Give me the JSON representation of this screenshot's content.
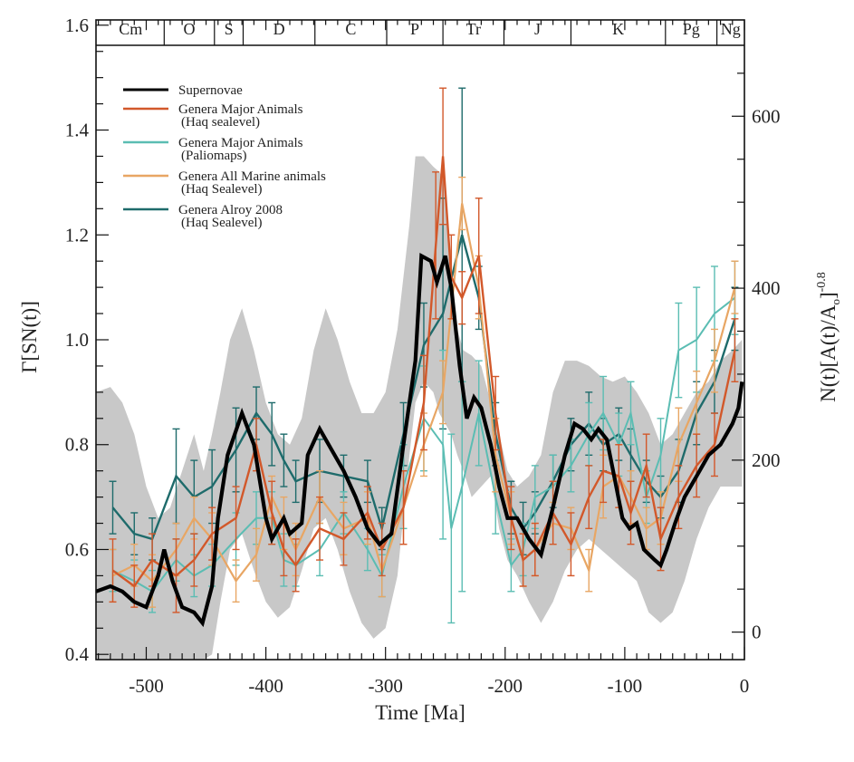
{
  "chart_data": {
    "type": "line",
    "title": "",
    "xlabel": "Time [Ma]",
    "ylabel": "Γ[SN(t)]",
    "ylabel_right": "N(t)[A(t)/A₀]^-0.8",
    "ylabel_right_base": "N(t)[A(t)/A",
    "ylabel_right_sub": "o",
    "ylabel_right_close": "]",
    "ylabel_right_exp": "-0.8",
    "xlim": [
      -542,
      0
    ],
    "ylim": [
      0.39,
      1.61
    ],
    "ylim_right": [
      -32,
      712
    ],
    "x_ticks": [
      -500,
      -400,
      -300,
      -200,
      -100,
      0
    ],
    "x_tick_labels": [
      "-500",
      "-400",
      "-300",
      "-200",
      "-100",
      "0"
    ],
    "y_ticks": [
      0.4,
      0.6,
      0.8,
      1.0,
      1.2,
      1.4,
      1.6
    ],
    "y_tick_labels": [
      "0.4",
      "0.6",
      "0.8",
      "1.0",
      "1.2",
      "1.4",
      "1.6"
    ],
    "y_right_ticks": [
      0,
      200,
      400,
      600
    ],
    "y_right_tick_labels": [
      "0",
      "200",
      "400",
      "600"
    ],
    "legend_position": "top-left",
    "periods": [
      {
        "label": "Cm",
        "start": -541,
        "end": -485
      },
      {
        "label": "O",
        "start": -485,
        "end": -443
      },
      {
        "label": "S",
        "start": -443,
        "end": -419
      },
      {
        "label": "D",
        "start": -419,
        "end": -359
      },
      {
        "label": "C",
        "start": -359,
        "end": -299
      },
      {
        "label": "P",
        "start": -299,
        "end": -252
      },
      {
        "label": "Tr",
        "start": -252,
        "end": -201
      },
      {
        "label": "J",
        "start": -201,
        "end": -145
      },
      {
        "label": "K",
        "start": -145,
        "end": -66
      },
      {
        "label": "Pg",
        "start": -66,
        "end": -23
      },
      {
        "label": "Ng",
        "start": -23,
        "end": 0
      }
    ],
    "band": {
      "name": "Supernovae uncertainty",
      "color": "#c8c8c8",
      "x": [
        -542,
        -530,
        -520,
        -510,
        -500,
        -490,
        -480,
        -470,
        -460,
        -452,
        -445,
        -438,
        -430,
        -420,
        -410,
        -400,
        -390,
        -380,
        -370,
        -360,
        -350,
        -340,
        -330,
        -320,
        -310,
        -300,
        -290,
        -280,
        -275,
        -268,
        -260,
        -255,
        -250,
        -245,
        -240,
        -235,
        -228,
        -220,
        -212,
        -205,
        -198,
        -190,
        -180,
        -170,
        -160,
        -150,
        -140,
        -130,
        -120,
        -110,
        -100,
        -90,
        -80,
        -70,
        -60,
        -50,
        -40,
        -30,
        -20,
        -10,
        -2
      ],
      "upper": [
        0.9,
        0.91,
        0.88,
        0.82,
        0.72,
        0.66,
        0.68,
        0.75,
        0.82,
        0.75,
        0.82,
        0.9,
        1.0,
        1.06,
        0.98,
        0.88,
        0.82,
        0.8,
        0.85,
        0.98,
        1.06,
        1.0,
        0.92,
        0.86,
        0.86,
        0.9,
        1.02,
        1.22,
        1.35,
        1.35,
        1.33,
        1.32,
        1.3,
        1.1,
        1.02,
        0.98,
        0.97,
        0.95,
        0.88,
        0.82,
        0.75,
        0.72,
        0.74,
        0.78,
        0.9,
        0.96,
        0.96,
        0.95,
        0.93,
        0.92,
        0.93,
        0.9,
        0.86,
        0.8,
        0.82,
        0.86,
        0.9,
        0.92,
        0.96,
        0.98,
        1.0
      ],
      "lower": [
        0.39,
        0.39,
        0.39,
        0.39,
        0.39,
        0.39,
        0.39,
        0.39,
        0.39,
        0.39,
        0.4,
        0.5,
        0.6,
        0.63,
        0.56,
        0.5,
        0.47,
        0.49,
        0.56,
        0.64,
        0.66,
        0.6,
        0.52,
        0.46,
        0.43,
        0.45,
        0.55,
        0.78,
        0.88,
        0.92,
        0.9,
        0.86,
        0.84,
        0.82,
        0.78,
        0.75,
        0.7,
        0.72,
        0.74,
        0.64,
        0.58,
        0.55,
        0.5,
        0.46,
        0.5,
        0.56,
        0.6,
        0.62,
        0.6,
        0.58,
        0.56,
        0.54,
        0.48,
        0.46,
        0.48,
        0.54,
        0.62,
        0.68,
        0.72,
        0.72,
        0.72
      ]
    },
    "series": [
      {
        "name": "Genera Alroy 2008 (Haq Sealevel)",
        "color": "#1e6b6b",
        "width": 2.4,
        "x": [
          -528,
          -510,
          -495,
          -475,
          -460,
          -445,
          -425,
          -408,
          -395,
          -385,
          -375,
          -355,
          -335,
          -315,
          -303,
          -285,
          -268,
          -252,
          -236,
          -222,
          -208,
          -195,
          -185,
          -175,
          -160,
          -145,
          -130,
          -118,
          -105,
          -95,
          -82,
          -70,
          -55,
          -40,
          -25,
          -8
        ],
        "y": [
          0.68,
          0.63,
          0.62,
          0.74,
          0.7,
          0.72,
          0.79,
          0.86,
          0.82,
          0.77,
          0.73,
          0.75,
          0.74,
          0.73,
          0.64,
          0.82,
          0.99,
          1.05,
          1.2,
          1.08,
          0.82,
          0.68,
          0.64,
          0.67,
          0.73,
          0.8,
          0.84,
          0.8,
          0.82,
          0.78,
          0.73,
          0.7,
          0.75,
          0.86,
          0.92,
          1.04
        ],
        "err": [
          0.05,
          0.04,
          0.04,
          0.09,
          0.07,
          0.07,
          0.08,
          0.05,
          0.06,
          0.05,
          0.04,
          0.06,
          0.04,
          0.04,
          0.04,
          0.06,
          0.08,
          0.22,
          0.28,
          0.06,
          0.06,
          0.05,
          0.05,
          0.04,
          0.05,
          0.05,
          0.06,
          0.05,
          0.05,
          0.05,
          0.04,
          0.04,
          0.06,
          0.06,
          0.06,
          0.06
        ]
      },
      {
        "name": "Genera Major Animals (Paliomaps)",
        "color": "#5bbdb3",
        "width": 2.0,
        "x": [
          -528,
          -510,
          -495,
          -475,
          -460,
          -445,
          -425,
          -408,
          -395,
          -385,
          -375,
          -355,
          -335,
          -315,
          -303,
          -285,
          -268,
          -252,
          -245,
          -236,
          -222,
          -208,
          -195,
          -185,
          -175,
          -160,
          -145,
          -130,
          -118,
          -105,
          -95,
          -82,
          -70,
          -55,
          -40,
          -25,
          -8
        ],
        "y": [
          0.56,
          0.54,
          0.52,
          0.58,
          0.55,
          0.57,
          0.62,
          0.66,
          0.66,
          0.58,
          0.57,
          0.6,
          0.67,
          0.6,
          0.55,
          0.72,
          0.85,
          0.8,
          0.64,
          0.72,
          0.86,
          0.7,
          0.57,
          0.6,
          0.7,
          0.72,
          0.76,
          0.82,
          0.86,
          0.8,
          0.86,
          0.7,
          0.78,
          0.98,
          1.0,
          1.05,
          1.08
        ],
        "err": [
          0.04,
          0.04,
          0.04,
          0.04,
          0.04,
          0.04,
          0.05,
          0.05,
          0.05,
          0.05,
          0.04,
          0.05,
          0.04,
          0.04,
          0.04,
          0.08,
          0.1,
          0.18,
          0.18,
          0.2,
          0.1,
          0.07,
          0.05,
          0.05,
          0.06,
          0.06,
          0.05,
          0.06,
          0.07,
          0.06,
          0.06,
          0.05,
          0.07,
          0.09,
          0.1,
          0.09,
          0.07
        ]
      },
      {
        "name": "Genera All Marine animals (Haq Sealevel)",
        "color": "#e8a664",
        "width": 2.2,
        "x": [
          -528,
          -510,
          -495,
          -475,
          -460,
          -445,
          -425,
          -408,
          -395,
          -385,
          -375,
          -355,
          -335,
          -315,
          -303,
          -285,
          -268,
          -252,
          -236,
          -222,
          -208,
          -195,
          -185,
          -175,
          -160,
          -145,
          -130,
          -118,
          -105,
          -95,
          -82,
          -70,
          -55,
          -40,
          -25,
          -8
        ],
        "y": [
          0.55,
          0.57,
          0.54,
          0.6,
          0.66,
          0.62,
          0.54,
          0.59,
          0.7,
          0.65,
          0.6,
          0.7,
          0.64,
          0.66,
          0.56,
          0.68,
          0.8,
          0.9,
          1.26,
          1.1,
          0.78,
          0.66,
          0.58,
          0.6,
          0.65,
          0.64,
          0.56,
          0.72,
          0.74,
          0.7,
          0.64,
          0.66,
          0.8,
          0.88,
          0.96,
          1.1
        ],
        "err": [
          0.05,
          0.04,
          0.05,
          0.05,
          0.04,
          0.05,
          0.04,
          0.05,
          0.04,
          0.05,
          0.05,
          0.05,
          0.05,
          0.05,
          0.05,
          0.07,
          0.06,
          0.06,
          0.05,
          0.06,
          0.07,
          0.05,
          0.05,
          0.05,
          0.04,
          0.04,
          0.04,
          0.06,
          0.06,
          0.05,
          0.04,
          0.05,
          0.07,
          0.06,
          0.06,
          0.05
        ]
      },
      {
        "name": "Genera Major Animals (Haq sealevel)",
        "color": "#d2582a",
        "width": 2.4,
        "x": [
          -528,
          -510,
          -495,
          -475,
          -460,
          -445,
          -425,
          -408,
          -395,
          -385,
          -375,
          -355,
          -335,
          -315,
          -303,
          -285,
          -268,
          -258,
          -252,
          -245,
          -236,
          -222,
          -208,
          -195,
          -185,
          -175,
          -160,
          -145,
          -130,
          -118,
          -105,
          -95,
          -82,
          -70,
          -55,
          -40,
          -25,
          -8
        ],
        "y": [
          0.56,
          0.53,
          0.58,
          0.55,
          0.58,
          0.63,
          0.66,
          0.8,
          0.67,
          0.6,
          0.57,
          0.64,
          0.62,
          0.67,
          0.6,
          0.68,
          0.88,
          1.18,
          1.35,
          1.12,
          1.08,
          1.16,
          0.86,
          0.66,
          0.58,
          0.6,
          0.67,
          0.61,
          0.7,
          0.75,
          0.74,
          0.67,
          0.76,
          0.62,
          0.7,
          0.76,
          0.8,
          0.98
        ],
        "err": [
          0.06,
          0.04,
          0.05,
          0.07,
          0.05,
          0.05,
          0.06,
          0.05,
          0.06,
          0.05,
          0.05,
          0.06,
          0.05,
          0.05,
          0.05,
          0.07,
          0.09,
          0.14,
          0.13,
          0.08,
          0.05,
          0.11,
          0.07,
          0.06,
          0.05,
          0.05,
          0.06,
          0.06,
          0.06,
          0.06,
          0.06,
          0.06,
          0.06,
          0.06,
          0.06,
          0.06,
          0.06,
          0.06
        ]
      },
      {
        "name": "Supernovae",
        "color": "#000000",
        "width": 4.2,
        "x": [
          -542,
          -530,
          -520,
          -510,
          -500,
          -490,
          -485,
          -478,
          -470,
          -460,
          -453,
          -445,
          -440,
          -432,
          -420,
          -410,
          -400,
          -395,
          -385,
          -380,
          -370,
          -365,
          -355,
          -345,
          -335,
          -325,
          -315,
          -305,
          -295,
          -285,
          -275,
          -270,
          -262,
          -257,
          -250,
          -245,
          -238,
          -232,
          -226,
          -220,
          -212,
          -205,
          -198,
          -190,
          -180,
          -170,
          -160,
          -150,
          -142,
          -135,
          -128,
          -122,
          -115,
          -108,
          -102,
          -96,
          -90,
          -84,
          -75,
          -70,
          -65,
          -58,
          -50,
          -40,
          -30,
          -20,
          -10,
          -5,
          -2
        ],
        "y": [
          0.52,
          0.53,
          0.52,
          0.5,
          0.49,
          0.55,
          0.6,
          0.54,
          0.49,
          0.48,
          0.46,
          0.53,
          0.66,
          0.78,
          0.86,
          0.8,
          0.66,
          0.62,
          0.66,
          0.63,
          0.65,
          0.78,
          0.83,
          0.79,
          0.75,
          0.7,
          0.64,
          0.61,
          0.63,
          0.8,
          0.96,
          1.16,
          1.15,
          1.11,
          1.16,
          1.1,
          0.95,
          0.85,
          0.89,
          0.87,
          0.8,
          0.72,
          0.66,
          0.66,
          0.62,
          0.59,
          0.68,
          0.78,
          0.84,
          0.83,
          0.81,
          0.83,
          0.81,
          0.73,
          0.66,
          0.64,
          0.65,
          0.6,
          0.58,
          0.57,
          0.6,
          0.65,
          0.7,
          0.74,
          0.78,
          0.8,
          0.84,
          0.87,
          0.92
        ]
      }
    ],
    "legend": [
      {
        "label": "Supernovae",
        "sub": "",
        "color": "#000000"
      },
      {
        "label": "Genera Major Animals",
        "sub": "(Haq sealevel)",
        "color": "#d2582a"
      },
      {
        "label": "Genera Major Animals",
        "sub": "(Paliomaps)",
        "color": "#5bbdb3"
      },
      {
        "label": "Genera All Marine animals",
        "sub": "(Haq Sealevel)",
        "color": "#e8a664"
      },
      {
        "label": "Genera Alroy 2008",
        "sub": "(Haq Sealevel)",
        "color": "#1e6b6b"
      }
    ]
  }
}
